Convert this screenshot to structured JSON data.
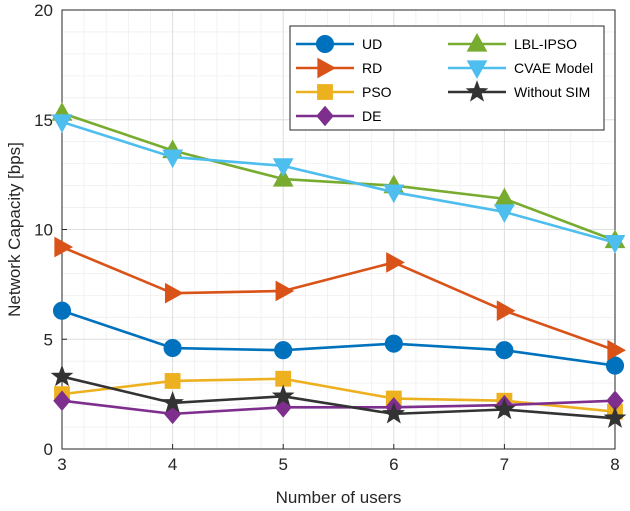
{
  "chart_data": {
    "type": "line",
    "title": "",
    "xlabel": "Number of users",
    "ylabel": "Network Capacity [bps]",
    "x": [
      3,
      4,
      5,
      6,
      7,
      8
    ],
    "xlim": [
      3,
      8
    ],
    "ylim": [
      0,
      20
    ],
    "xticks": [
      "3",
      "4",
      "5",
      "6",
      "7",
      "8"
    ],
    "yticks": [
      "0",
      "5",
      "10",
      "15",
      "20"
    ],
    "grid": true,
    "legend_position": "top-right",
    "series": [
      {
        "name": "UD",
        "color": "#0072bd",
        "marker": "circle",
        "values": [
          6.3,
          4.6,
          4.5,
          4.8,
          4.5,
          3.8
        ]
      },
      {
        "name": "RD",
        "color": "#d95319",
        "marker": "triangle-right",
        "values": [
          9.2,
          7.1,
          7.2,
          8.5,
          6.3,
          4.5
        ]
      },
      {
        "name": "PSO",
        "color": "#edb120",
        "marker": "square",
        "values": [
          2.5,
          3.1,
          3.2,
          2.3,
          2.2,
          1.7
        ]
      },
      {
        "name": "DE",
        "color": "#7e2f8e",
        "marker": "diamond",
        "values": [
          2.2,
          1.6,
          1.9,
          1.9,
          2.0,
          2.2
        ]
      },
      {
        "name": "LBL-IPSO",
        "color": "#77ac30",
        "marker": "triangle-up",
        "values": [
          15.3,
          13.6,
          12.3,
          12.0,
          11.4,
          9.5
        ]
      },
      {
        "name": "CVAE Model",
        "color": "#4dbeee",
        "marker": "triangle-down",
        "values": [
          14.9,
          13.3,
          12.9,
          11.7,
          10.8,
          9.4
        ]
      },
      {
        "name": "Without SIM",
        "color": "#333333",
        "marker": "star",
        "values": [
          3.3,
          2.1,
          2.4,
          1.6,
          1.8,
          1.4
        ]
      }
    ]
  }
}
